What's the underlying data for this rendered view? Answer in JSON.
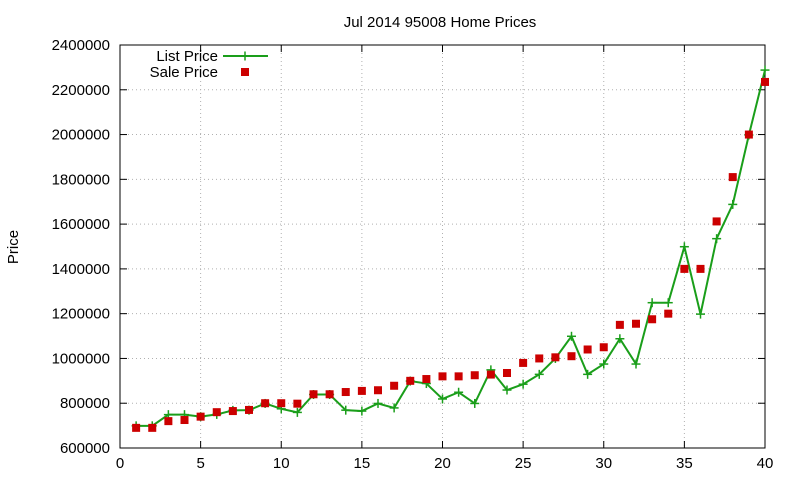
{
  "chart_data": {
    "type": "line",
    "title": "Jul 2014 95008 Home Prices",
    "xlabel": "",
    "ylabel": "Price",
    "xlim": [
      0,
      40
    ],
    "ylim": [
      600000,
      2400000
    ],
    "xticks": [
      0,
      5,
      10,
      15,
      20,
      25,
      30,
      35,
      40
    ],
    "yticks": [
      600000,
      800000,
      1000000,
      1200000,
      1400000,
      1600000,
      1800000,
      2000000,
      2200000,
      2400000
    ],
    "grid": true,
    "legend_position": "top-left",
    "series": [
      {
        "name": "List Price",
        "style": "line-plus",
        "color": "#1a9e1a",
        "x": [
          1,
          2,
          3,
          4,
          5,
          6,
          7,
          8,
          9,
          10,
          11,
          12,
          13,
          14,
          15,
          16,
          17,
          18,
          19,
          20,
          21,
          22,
          23,
          24,
          25,
          26,
          27,
          28,
          29,
          30,
          31,
          32,
          33,
          34,
          35,
          36,
          37,
          38,
          39,
          40
        ],
        "y": [
          699000,
          699000,
          749000,
          749000,
          740000,
          750000,
          768000,
          769000,
          799000,
          775000,
          759000,
          839000,
          839000,
          769000,
          765000,
          799000,
          779000,
          899000,
          888000,
          819000,
          849000,
          799000,
          949000,
          859000,
          885000,
          929000,
          1000000,
          1099000,
          929000,
          975000,
          1088000,
          975000,
          1249000,
          1249000,
          1499000,
          1198000,
          1535000,
          1688000,
          1998000,
          2288000
        ]
      },
      {
        "name": "Sale Price",
        "style": "square",
        "color": "#cc0000",
        "x": [
          1,
          2,
          3,
          4,
          5,
          6,
          7,
          8,
          9,
          10,
          11,
          12,
          13,
          14,
          15,
          16,
          17,
          18,
          19,
          20,
          21,
          22,
          23,
          24,
          25,
          26,
          27,
          28,
          29,
          30,
          31,
          32,
          33,
          34,
          35,
          36,
          37,
          38,
          39,
          40
        ],
        "y": [
          690000,
          690000,
          720000,
          725000,
          740000,
          760000,
          765000,
          770000,
          800000,
          800000,
          798000,
          840000,
          840000,
          850000,
          855000,
          858000,
          878000,
          900000,
          908000,
          920000,
          920000,
          925000,
          928000,
          935000,
          980000,
          1000000,
          1005000,
          1010000,
          1040000,
          1050000,
          1150000,
          1155000,
          1175000,
          1200000,
          1400000,
          1400000,
          1612000,
          1810000,
          2000000,
          2235000
        ]
      }
    ]
  }
}
